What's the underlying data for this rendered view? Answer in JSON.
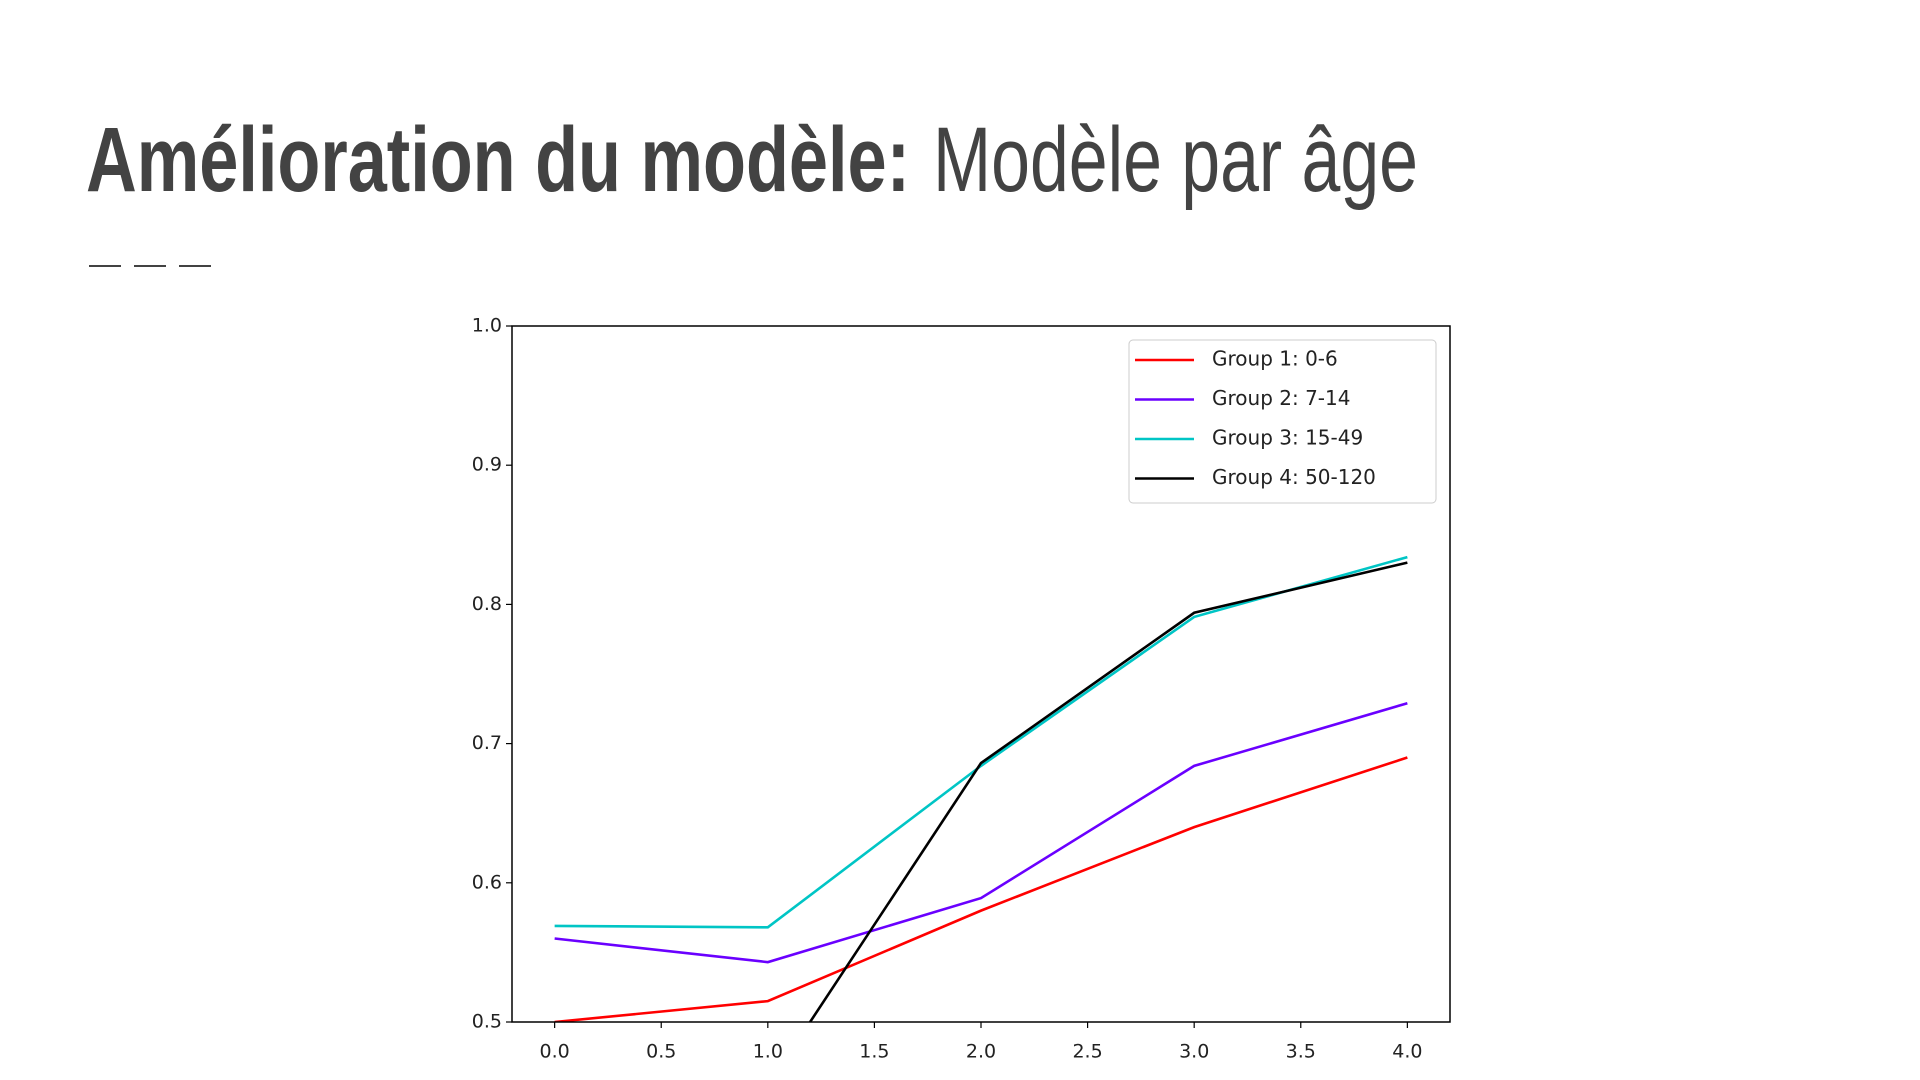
{
  "slide": {
    "title_bold": "Amélioration du modèle:",
    "title_light": "Modèle par âge"
  },
  "chart_data": {
    "type": "line",
    "x": [
      0,
      1,
      2,
      3,
      4
    ],
    "series": [
      {
        "name": "Group 1: 0-6",
        "color": "#ff0000",
        "values": [
          0.5,
          0.515,
          0.58,
          0.64,
          0.69
        ]
      },
      {
        "name": "Group 2: 7-14",
        "color": "#6a00ff",
        "values": [
          0.56,
          0.543,
          0.589,
          0.684,
          0.729
        ]
      },
      {
        "name": "Group 3: 15-49",
        "color": "#00c5c5",
        "values": [
          0.569,
          0.568,
          0.684,
          0.791,
          0.834
        ]
      },
      {
        "name": "Group 4: 50-120",
        "color": "#000000",
        "values": [
          null,
          0.454,
          0.686,
          0.794,
          0.83
        ]
      }
    ],
    "xlim": [
      -0.2,
      4.2
    ],
    "xticks": [
      {
        "value": 0,
        "label": "0.0"
      },
      0.5,
      {
        "value": 1,
        "label": "1.0"
      },
      1.5,
      {
        "value": 2,
        "label": "2.0"
      },
      2.5,
      {
        "value": 3,
        "label": "3.0"
      },
      3.5,
      {
        "value": 4,
        "label": "4.0"
      }
    ],
    "ylim": [
      0.5,
      1.0
    ],
    "yticks": [
      0.5,
      0.6,
      0.7,
      0.8,
      0.9,
      {
        "value": 1.0,
        "label": "1.0"
      }
    ],
    "legend": "upper right"
  }
}
